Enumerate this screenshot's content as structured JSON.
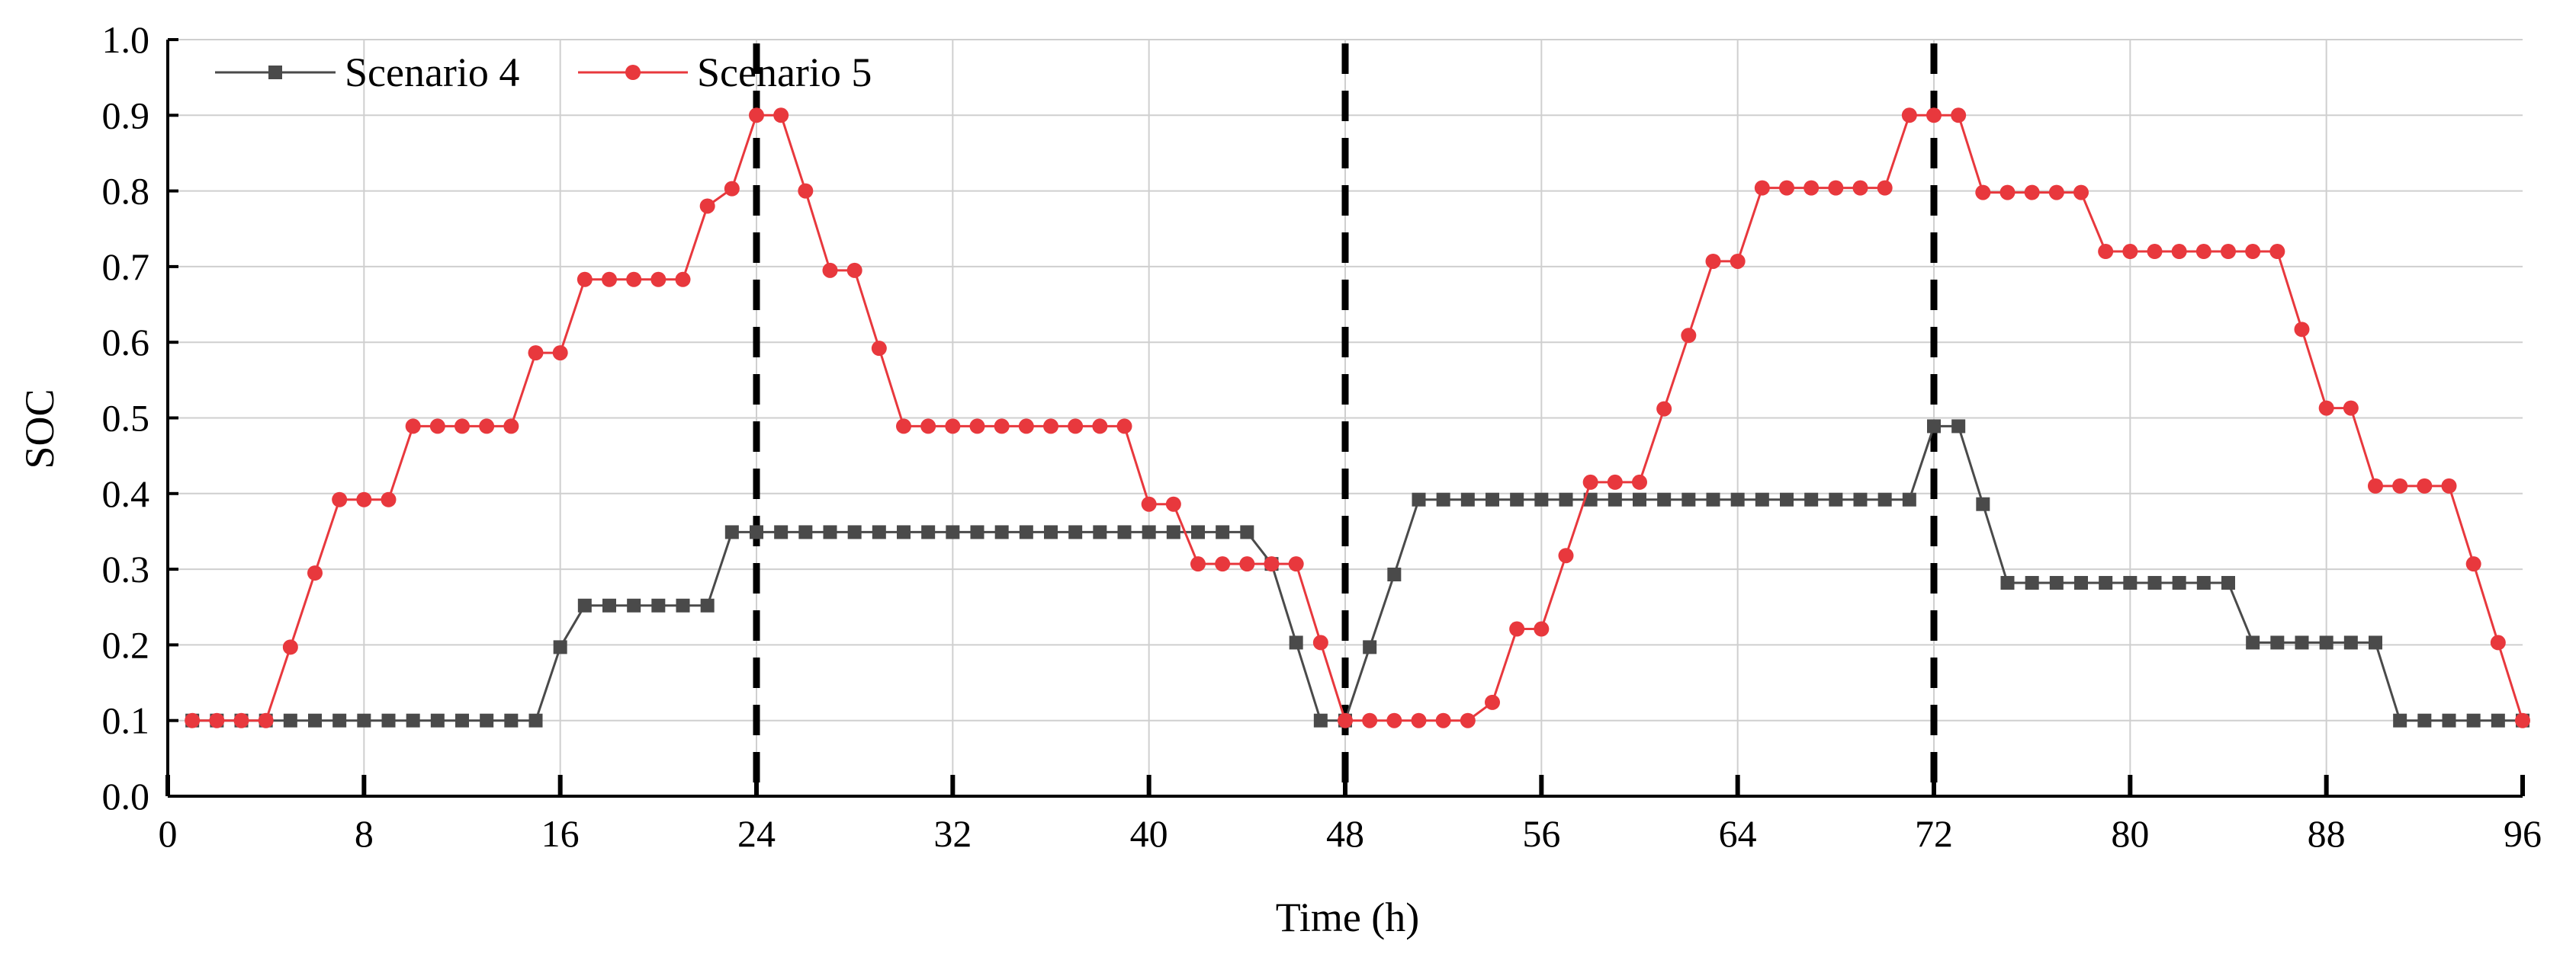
{
  "chart_data": {
    "type": "line",
    "xlabel": "Time (h)",
    "ylabel": "SOC",
    "xlim": [
      0,
      96
    ],
    "ylim": [
      0,
      1.0
    ],
    "xticks": [
      "0",
      "8",
      "16",
      "24",
      "32",
      "40",
      "48",
      "56",
      "64",
      "72",
      "80",
      "88",
      "96"
    ],
    "yticks": [
      "0.0",
      "0.1",
      "0.2",
      "0.3",
      "0.4",
      "0.5",
      "0.6",
      "0.7",
      "0.8",
      "0.9",
      "1.0"
    ],
    "grid": true,
    "legend_position": "top-left",
    "vertical_dashed_lines": [
      24,
      48,
      72
    ],
    "x": [
      1,
      2,
      3,
      4,
      5,
      6,
      7,
      8,
      9,
      10,
      11,
      12,
      13,
      14,
      15,
      16,
      17,
      18,
      19,
      20,
      21,
      22,
      23,
      24,
      25,
      26,
      27,
      28,
      29,
      30,
      31,
      32,
      33,
      34,
      35,
      36,
      37,
      38,
      39,
      40,
      41,
      42,
      43,
      44,
      45,
      46,
      47,
      48,
      49,
      50,
      51,
      52,
      53,
      54,
      55,
      56,
      57,
      58,
      59,
      60,
      61,
      62,
      63,
      64,
      65,
      66,
      67,
      68,
      69,
      70,
      71,
      72,
      73,
      74,
      75,
      76,
      77,
      78,
      79,
      80,
      81,
      82,
      83,
      84,
      85,
      86,
      87,
      88,
      89,
      90,
      91,
      92,
      93,
      94,
      95,
      96
    ],
    "series": [
      {
        "name": "Scenario 4",
        "color": "#4a4a4a",
        "marker": "square",
        "values": [
          0.1,
          0.1,
          0.1,
          0.1,
          0.1,
          0.1,
          0.1,
          0.1,
          0.1,
          0.1,
          0.1,
          0.1,
          0.1,
          0.1,
          0.1,
          0.197,
          0.252,
          0.252,
          0.252,
          0.252,
          0.252,
          0.252,
          0.349,
          0.349,
          0.349,
          0.349,
          0.349,
          0.349,
          0.349,
          0.349,
          0.349,
          0.349,
          0.349,
          0.349,
          0.349,
          0.349,
          0.349,
          0.349,
          0.349,
          0.349,
          0.349,
          0.349,
          0.349,
          0.349,
          0.307,
          0.203,
          0.1,
          0.1,
          0.197,
          0.293,
          0.392,
          0.392,
          0.392,
          0.392,
          0.392,
          0.392,
          0.392,
          0.392,
          0.392,
          0.392,
          0.392,
          0.392,
          0.392,
          0.392,
          0.392,
          0.392,
          0.392,
          0.392,
          0.392,
          0.392,
          0.392,
          0.489,
          0.489,
          0.386,
          0.282,
          0.282,
          0.282,
          0.282,
          0.282,
          0.282,
          0.282,
          0.282,
          0.282,
          0.282,
          0.203,
          0.203,
          0.203,
          0.203,
          0.203,
          0.203,
          0.1,
          0.1,
          0.1,
          0.1,
          0.1,
          0.1
        ]
      },
      {
        "name": "Scenario 5",
        "color": "#e8383d",
        "marker": "circle",
        "values": [
          0.1,
          0.1,
          0.1,
          0.1,
          0.197,
          0.295,
          0.392,
          0.392,
          0.392,
          0.489,
          0.489,
          0.489,
          0.489,
          0.489,
          0.586,
          0.586,
          0.683,
          0.683,
          0.683,
          0.683,
          0.683,
          0.78,
          0.803,
          0.9,
          0.9,
          0.8,
          0.695,
          0.695,
          0.592,
          0.489,
          0.489,
          0.489,
          0.489,
          0.489,
          0.489,
          0.489,
          0.489,
          0.489,
          0.489,
          0.386,
          0.386,
          0.307,
          0.307,
          0.307,
          0.307,
          0.307,
          0.203,
          0.1,
          0.1,
          0.1,
          0.1,
          0.1,
          0.1,
          0.124,
          0.221,
          0.221,
          0.318,
          0.415,
          0.415,
          0.415,
          0.512,
          0.609,
          0.707,
          0.707,
          0.804,
          0.804,
          0.804,
          0.804,
          0.804,
          0.804,
          0.9,
          0.9,
          0.9,
          0.798,
          0.798,
          0.798,
          0.798,
          0.798,
          0.72,
          0.72,
          0.72,
          0.72,
          0.72,
          0.72,
          0.72,
          0.72,
          0.617,
          0.513,
          0.513,
          0.41,
          0.41,
          0.41,
          0.41,
          0.307,
          0.203,
          0.1
        ]
      }
    ]
  }
}
